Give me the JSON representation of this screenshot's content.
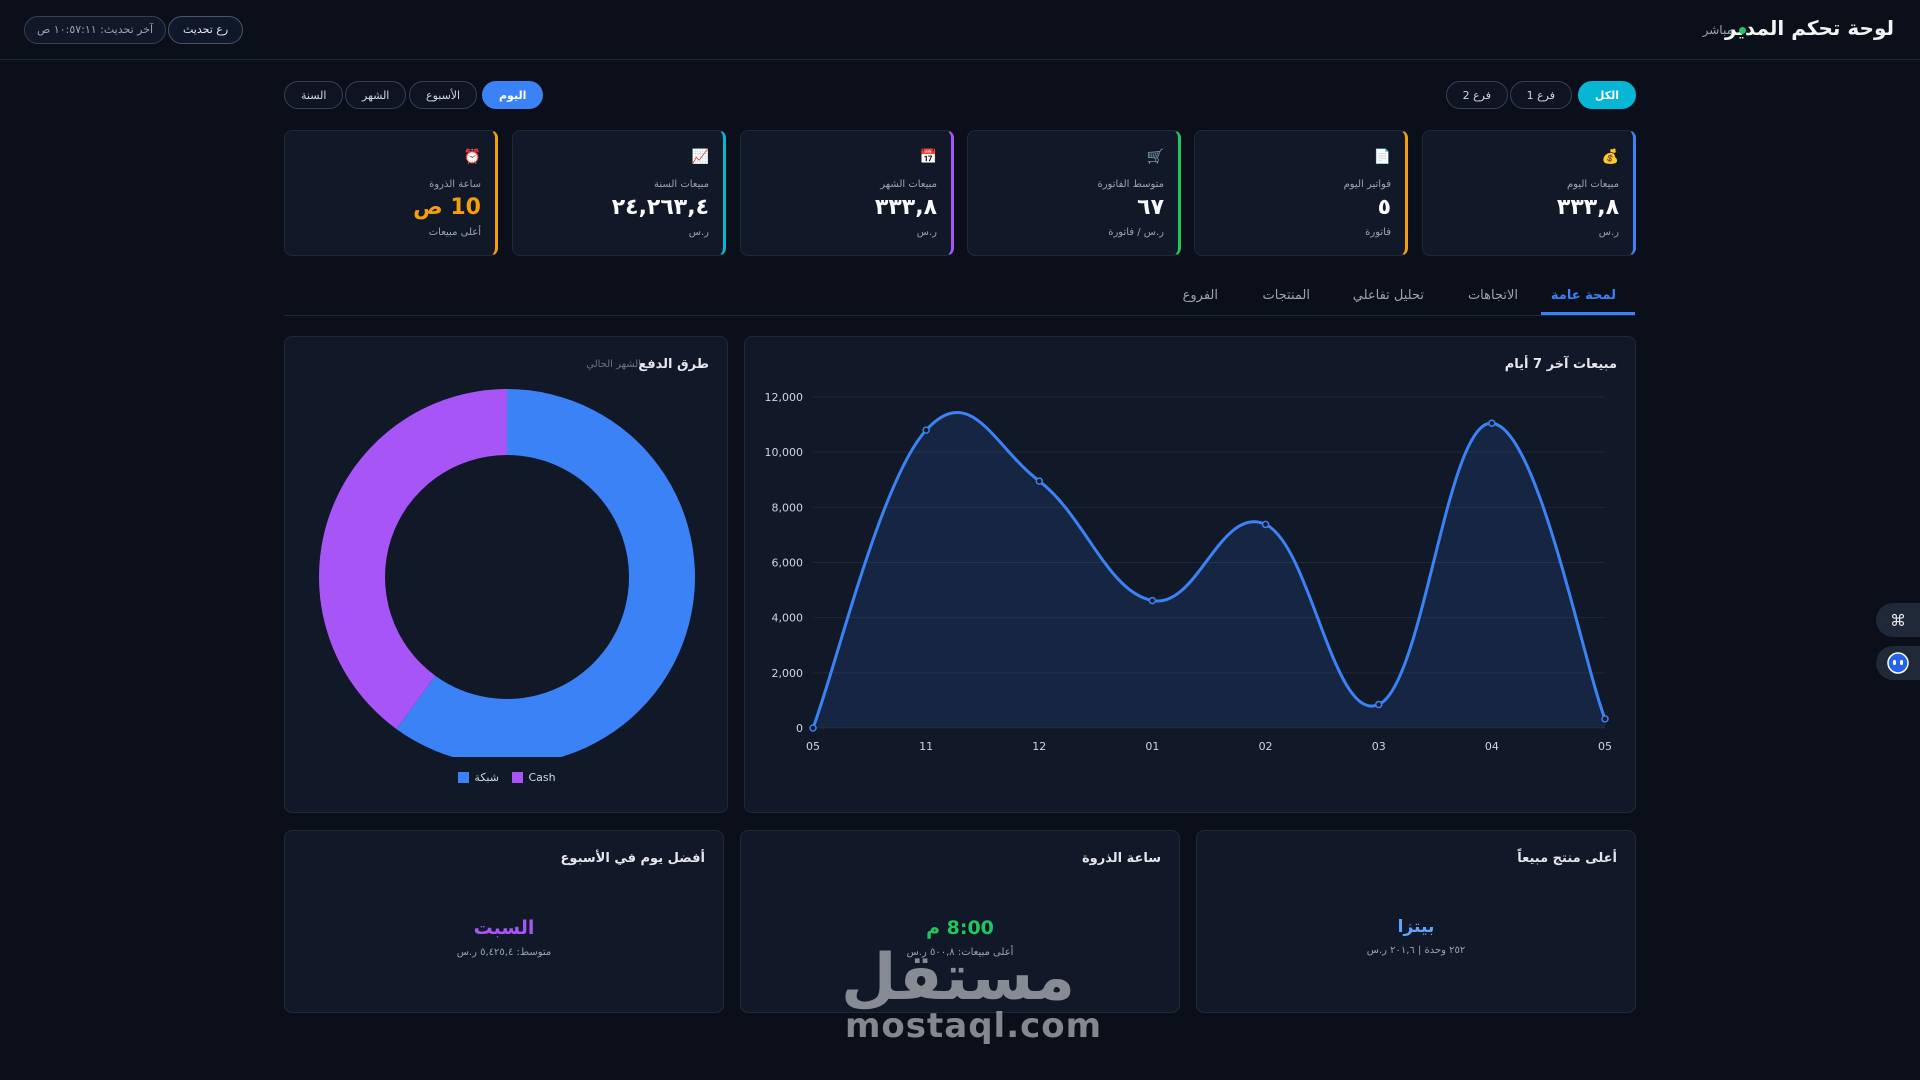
{
  "header": {
    "title": "لوحة تحكم المدير",
    "live_label": "مباشر",
    "last_update": "آخر تحديث: ١٠:٥٧:١١ ص",
    "refresh_label": "رع تحديث"
  },
  "branches": [
    {
      "label": "الكل",
      "active": true
    },
    {
      "label": "فرع 1",
      "active": false
    },
    {
      "label": "فرع 2",
      "active": false
    }
  ],
  "periods": [
    {
      "label": "اليوم",
      "active": true
    },
    {
      "label": "الأسبوع",
      "active": false
    },
    {
      "label": "الشهر",
      "active": false
    },
    {
      "label": "السنة",
      "active": false
    }
  ],
  "stats": [
    {
      "label": "مبيعات اليوم",
      "value": "٣٣٣,٨",
      "sub": "ر.س",
      "icon": "money-bag-icon",
      "glyph": "💰",
      "accent": "#3b82f6"
    },
    {
      "label": "فواتير اليوم",
      "value": "٥",
      "sub": "فاتورة",
      "icon": "receipt-icon",
      "glyph": "📄",
      "accent": "#f59e0b"
    },
    {
      "label": "متوسط الفاتورة",
      "value": "٦٧",
      "sub": "ر.س / فاتورة",
      "icon": "cart-icon",
      "glyph": "🛒",
      "accent": "#22c55e"
    },
    {
      "label": "مبيعات الشهر",
      "value": "٣٣٣,٨",
      "sub": "ر.س",
      "icon": "calendar-icon",
      "glyph": "📅",
      "accent": "#a855f7"
    },
    {
      "label": "مبيعات السنة",
      "value": "٢٤,٢٦٣,٤",
      "sub": "ر.س",
      "icon": "chart-up-icon",
      "glyph": "📈",
      "accent": "#06b6d4"
    },
    {
      "label": "ساعة الذروة",
      "value": "10 ص",
      "sub": "أعلى مبيعات",
      "icon": "alarm-clock-icon",
      "glyph": "⏰",
      "accent": "#f59e0b",
      "value_color": "#f59e0b"
    }
  ],
  "tabs": [
    {
      "label": "لمحة عامة",
      "active": true
    },
    {
      "label": "الاتجاهات",
      "active": false
    },
    {
      "label": "تحليل تفاعلي",
      "active": false
    },
    {
      "label": "المنتجات",
      "active": false
    },
    {
      "label": "الفروع",
      "active": false
    }
  ],
  "sales_panel": {
    "title": "مبيعات آخر 7 أيام"
  },
  "payments_panel": {
    "title": "طرق الدفع",
    "subtitle": "الشهر الحالي"
  },
  "chart_data": [
    {
      "type": "area",
      "title": "مبيعات آخر 7 أيام",
      "categories": [
        "05",
        "11",
        "12",
        "01",
        "02",
        "03",
        "04",
        "05"
      ],
      "values": [
        0,
        10800,
        8950,
        4620,
        7380,
        850,
        11050,
        330
      ],
      "ylim": [
        0,
        12000
      ],
      "yticks": [
        "0",
        "2,000",
        "4,000",
        "6,000",
        "8,000",
        "10,000",
        "12,000"
      ],
      "grid": true,
      "color": "#3b82f6"
    },
    {
      "type": "pie",
      "title": "طرق الدفع",
      "labels": [
        "شبكة",
        "Cash"
      ],
      "values": [
        60,
        40
      ],
      "colors": [
        "#3b82f6",
        "#a855f7"
      ],
      "legend": "bottom"
    }
  ],
  "bottom": {
    "top_product": {
      "title": "أعلى منتج مبيعاً",
      "value": "بيتزا",
      "sub": "٢٥٢ وحدة | ٢٠١,٦ ر.س",
      "color": "#60a5fa"
    },
    "peak_hour": {
      "title": "ساعة الذروة",
      "value": "8:00 م",
      "sub": "أعلى مبيعات: ٥٠٠,٨ ر.س",
      "color": "#22c55e"
    },
    "best_day": {
      "title": "أفضل يوم في الأسبوع",
      "value": "السبت",
      "sub": "متوسط: ٥,٤٢٥,٤ ر.س",
      "color": "#a855f7"
    }
  },
  "watermark": {
    "arabic": "مستقل",
    "latin": "mostaql.com"
  }
}
